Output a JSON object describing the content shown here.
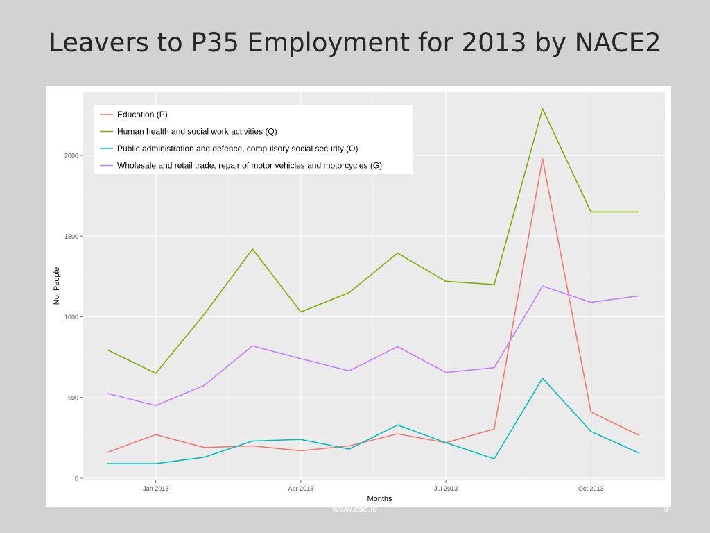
{
  "slide": {
    "title": "Leavers to P35 Employment for 2013 by NACE2",
    "footer": "www.cso.ie",
    "page_number": "9"
  },
  "chart_data": {
    "type": "line",
    "xlabel": "Months",
    "ylabel": "No. People",
    "x": [
      "Dec 2012",
      "Jan 2013",
      "Feb 2013",
      "Mar 2013",
      "Apr 2013",
      "May 2013",
      "Jun 2013",
      "Jul 2013",
      "Aug 2013",
      "Sep 2013",
      "Oct 2013",
      "Nov 2013"
    ],
    "x_ticks": [
      {
        "label": "Jan 2013",
        "index": 1
      },
      {
        "label": "Apr 2013",
        "index": 4
      },
      {
        "label": "Jul 2013",
        "index": 7
      },
      {
        "label": "Oct 2013",
        "index": 10
      }
    ],
    "y_ticks": [
      0,
      500,
      1000,
      1500,
      2000
    ],
    "ylim": [
      0,
      2320
    ],
    "grid": true,
    "legend_position": "top-left",
    "series": [
      {
        "name": "Education (P)",
        "color": "#f8766d",
        "values": [
          160,
          270,
          190,
          200,
          170,
          200,
          275,
          220,
          305,
          1980,
          410,
          265
        ]
      },
      {
        "name": "Human health and social work activities (Q)",
        "color": "#7cae00",
        "values": [
          795,
          650,
          1015,
          1420,
          1030,
          1150,
          1395,
          1220,
          1200,
          2290,
          1650,
          1650
        ]
      },
      {
        "name": "Public administration and defence, compulsory social security (O)",
        "color": "#00bfc4",
        "values": [
          90,
          90,
          130,
          230,
          240,
          180,
          330,
          220,
          120,
          620,
          290,
          155
        ]
      },
      {
        "name": "Wholesale and retail trade, repair of motor vehicles and motorcycles (G)",
        "color": "#c77cff",
        "values": [
          525,
          450,
          575,
          820,
          740,
          665,
          815,
          655,
          685,
          1190,
          1090,
          1130
        ]
      }
    ]
  }
}
